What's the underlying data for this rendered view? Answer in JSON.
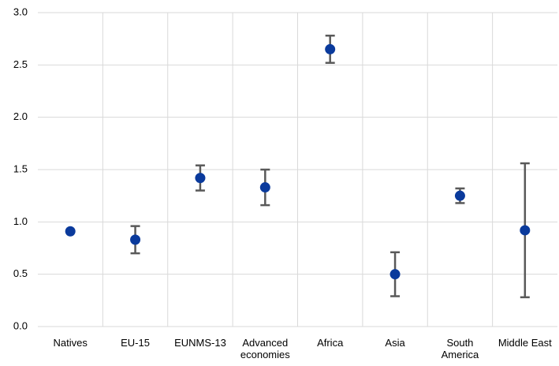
{
  "chart_data": {
    "type": "errorbar",
    "categories": [
      "Natives",
      "EU-15",
      "EUNMS-13",
      "Advanced economies",
      "Africa",
      "Asia",
      "South America",
      "Middle East"
    ],
    "values": [
      0.91,
      0.83,
      1.42,
      1.33,
      2.65,
      0.5,
      1.25,
      0.92
    ],
    "errors": [
      null,
      0.13,
      0.12,
      0.17,
      0.13,
      0.21,
      0.07,
      0.64
    ],
    "color": "#0a3a9c",
    "error_color": "#595959",
    "ylim": [
      0,
      3
    ],
    "yticks": [
      {
        "value": 0,
        "label": "0.0"
      },
      0.5,
      {
        "value": 1,
        "label": "1.0"
      },
      1.5,
      {
        "value": 2,
        "label": "2.0"
      },
      2.5,
      {
        "value": 3,
        "label": "3.0"
      }
    ],
    "grid": true
  }
}
